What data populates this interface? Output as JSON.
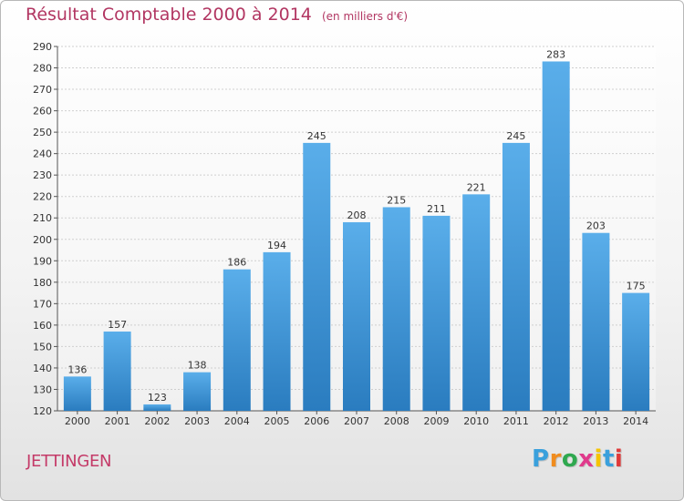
{
  "title": "Résultat Comptable 2000 à 2014",
  "subtitle": "(en milliers d'€)",
  "city": "JETTINGEN",
  "brand": {
    "letters": [
      "P",
      "r",
      "o",
      "x",
      "i",
      "t",
      "i"
    ],
    "colors": [
      "#3aa0dc",
      "#f08c1e",
      "#2fa84f",
      "#e03a8c",
      "#f5c400",
      "#3aa0dc",
      "#e03a3a"
    ]
  },
  "colors": {
    "bar_top": "#5aaeea",
    "bar_bottom": "#2a7cbf",
    "grid": "#cfcfcf",
    "axis": "#555555",
    "title": "#b23662"
  },
  "chart_data": {
    "type": "bar",
    "categories": [
      "2000",
      "2001",
      "2002",
      "2003",
      "2004",
      "2005",
      "2006",
      "2007",
      "2008",
      "2009",
      "2010",
      "2011",
      "2012",
      "2013",
      "2014"
    ],
    "values": [
      136,
      157,
      123,
      138,
      186,
      194,
      245,
      208,
      215,
      211,
      221,
      245,
      283,
      203,
      175
    ],
    "ylim": [
      120,
      290
    ],
    "ytick_step": 10,
    "grid": true,
    "data_labels": true
  }
}
